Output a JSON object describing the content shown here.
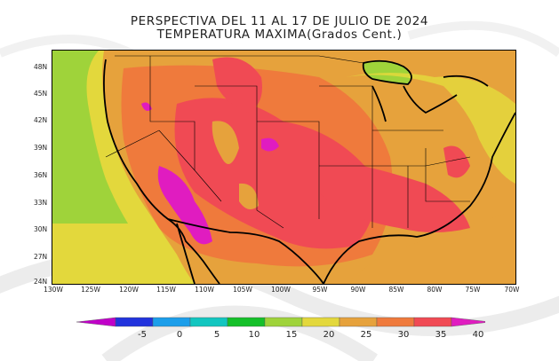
{
  "title": {
    "line1": "PERSPECTIVA DEL 11 AL 17 DE JULIO DE 2024",
    "line2": "TEMPERATURA MAXIMA(Grados Cent.)"
  },
  "map": {
    "region": "Contiguous United States",
    "lat_labels": [
      "48N",
      "45N",
      "42N",
      "39N",
      "36N",
      "33N",
      "30N",
      "27N",
      "24N"
    ],
    "lon_labels": [
      "130W",
      "125W",
      "120W",
      "115W",
      "110W",
      "105W",
      "100W",
      "95W",
      "90W",
      "85W",
      "80W",
      "75W",
      "70W"
    ]
  },
  "colorbar": {
    "labels": [
      "-5",
      "0",
      "5",
      "10",
      "15",
      "20",
      "25",
      "30",
      "35",
      "40"
    ],
    "colors": [
      "#c000c8",
      "#2233dd",
      "#1c9eea",
      "#13c6c0",
      "#15c02a",
      "#9fd33a",
      "#e3d83c",
      "#e6a23c",
      "#ef7a3c",
      "#f04a54",
      "#e01cc0"
    ]
  }
}
